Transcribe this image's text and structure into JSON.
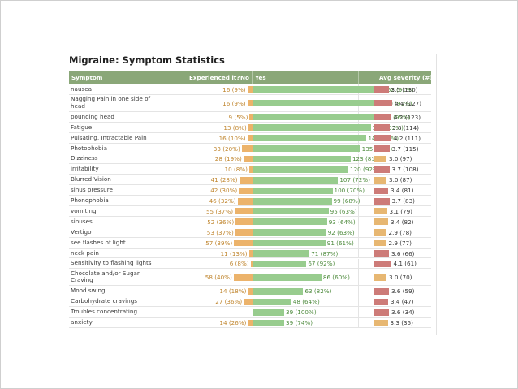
{
  "title": "Migraine: Symptom Statistics",
  "colors": {
    "header_bg": "#8aa778",
    "no_bar": "#ecb36b",
    "yes_bar": "#98cc8e",
    "severity_high": "#cd7b78",
    "severity_mid": "#e7b772"
  },
  "chart_data": {
    "type": "table",
    "title": "Migraine: Symptom Statistics",
    "columns": {
      "symptom": "Symptom",
      "experienced": "Experienced it?",
      "no": "No",
      "yes": "Yes",
      "severity": "Avg severity (#)"
    },
    "rows": [
      {
        "symptom": "nausea",
        "no_label": "16 (9%)",
        "no_count": 16,
        "yes_label": "162 (91%)",
        "yes_count": 162,
        "sev_label": "3.5 (130)",
        "severity": 3.5,
        "sev_color": "#cd7b78"
      },
      {
        "symptom": "Nagging Pain in one side of head",
        "no_label": "16 (9%)",
        "no_count": 16,
        "yes_label": "160 (91%)",
        "yes_count": 160,
        "sev_label": "4.4 (127)",
        "severity": 4.4,
        "sev_color": "#cd7b78"
      },
      {
        "symptom": "pounding head",
        "no_label": "9 (5%)",
        "no_count": 9,
        "yes_label": "158 (95%)",
        "yes_count": 158,
        "sev_label": "4.2 (123)",
        "severity": 4.2,
        "sev_color": "#cd7b78"
      },
      {
        "symptom": "Fatigue",
        "no_label": "13 (8%)",
        "no_count": 13,
        "yes_label": "149 (92%)",
        "yes_count": 149,
        "sev_label": "3.8 (114)",
        "severity": 3.8,
        "sev_color": "#cd7b78"
      },
      {
        "symptom": "Pulsating, Intractable Pain",
        "no_label": "16 (10%)",
        "no_count": 16,
        "yes_label": "143 (90%)",
        "yes_count": 143,
        "sev_label": "4.2 (111)",
        "severity": 4.2,
        "sev_color": "#cd7b78"
      },
      {
        "symptom": "Photophobia",
        "no_label": "33 (20%)",
        "no_count": 33,
        "yes_label": "135 (80%)",
        "yes_count": 135,
        "sev_label": "3.7 (115)",
        "severity": 3.7,
        "sev_color": "#cd7b78"
      },
      {
        "symptom": "Dizziness",
        "no_label": "28 (19%)",
        "no_count": 28,
        "yes_label": "123 (81%)",
        "yes_count": 123,
        "sev_label": "3.0 (97)",
        "severity": 3.0,
        "sev_color": "#e7b772"
      },
      {
        "symptom": "irritability",
        "no_label": "10 (8%)",
        "no_count": 10,
        "yes_label": "120 (92%)",
        "yes_count": 120,
        "sev_label": "3.7 (108)",
        "severity": 3.7,
        "sev_color": "#cd7b78"
      },
      {
        "symptom": "Blurred Vision",
        "no_label": "41 (28%)",
        "no_count": 41,
        "yes_label": "107 (72%)",
        "yes_count": 107,
        "sev_label": "3.0 (87)",
        "severity": 3.0,
        "sev_color": "#e7b772"
      },
      {
        "symptom": "sinus pressure",
        "no_label": "42 (30%)",
        "no_count": 42,
        "yes_label": "100 (70%)",
        "yes_count": 100,
        "sev_label": "3.4 (81)",
        "severity": 3.4,
        "sev_color": "#cd7b78"
      },
      {
        "symptom": "Phonophobia",
        "no_label": "46 (32%)",
        "no_count": 46,
        "yes_label": "99 (68%)",
        "yes_count": 99,
        "sev_label": "3.7 (83)",
        "severity": 3.7,
        "sev_color": "#cd7b78"
      },
      {
        "symptom": "vomiting",
        "no_label": "55 (37%)",
        "no_count": 55,
        "yes_label": "95 (63%)",
        "yes_count": 95,
        "sev_label": "3.1 (79)",
        "severity": 3.1,
        "sev_color": "#e7b772"
      },
      {
        "symptom": "sinuses",
        "no_label": "52 (36%)",
        "no_count": 52,
        "yes_label": "93 (64%)",
        "yes_count": 93,
        "sev_label": "3.4 (82)",
        "severity": 3.4,
        "sev_color": "#e7b772"
      },
      {
        "symptom": "Vertigo",
        "no_label": "53 (37%)",
        "no_count": 53,
        "yes_label": "92 (63%)",
        "yes_count": 92,
        "sev_label": "2.9 (78)",
        "severity": 2.9,
        "sev_color": "#e7b772"
      },
      {
        "symptom": "see flashes of light",
        "no_label": "57 (39%)",
        "no_count": 57,
        "yes_label": "91 (61%)",
        "yes_count": 91,
        "sev_label": "2.9 (77)",
        "severity": 2.9,
        "sev_color": "#e7b772"
      },
      {
        "symptom": "neck pain",
        "no_label": "11 (13%)",
        "no_count": 11,
        "yes_label": "71 (87%)",
        "yes_count": 71,
        "sev_label": "3.6 (66)",
        "severity": 3.6,
        "sev_color": "#cd7b78"
      },
      {
        "symptom": "Sensitivity to flashing lights",
        "no_label": "6 (8%)",
        "no_count": 6,
        "yes_label": "67 (92%)",
        "yes_count": 67,
        "sev_label": "4.1 (61)",
        "severity": 4.1,
        "sev_color": "#cd7b78"
      },
      {
        "symptom": "Chocolate and/or Sugar Craving",
        "no_label": "58 (40%)",
        "no_count": 58,
        "yes_label": "86 (60%)",
        "yes_count": 86,
        "sev_label": "3.0 (70)",
        "severity": 3.0,
        "sev_color": "#e7b772"
      },
      {
        "symptom": "Mood swing",
        "no_label": "14 (18%)",
        "no_count": 14,
        "yes_label": "63 (82%)",
        "yes_count": 63,
        "sev_label": "3.6 (59)",
        "severity": 3.6,
        "sev_color": "#cd7b78"
      },
      {
        "symptom": "Carbohydrate cravings",
        "no_label": "27 (36%)",
        "no_count": 27,
        "yes_label": "48 (64%)",
        "yes_count": 48,
        "sev_label": "3.4 (47)",
        "severity": 3.4,
        "sev_color": "#cd7b78"
      },
      {
        "symptom": "Troubles concentrating",
        "no_label": "",
        "no_count": 0,
        "yes_label": "39 (100%)",
        "yes_count": 39,
        "sev_label": "3.6 (34)",
        "severity": 3.6,
        "sev_color": "#cd7b78"
      },
      {
        "symptom": "anxiety",
        "no_label": "14 (26%)",
        "no_count": 14,
        "yes_label": "39 (74%)",
        "yes_count": 39,
        "sev_label": "3.3 (35)",
        "severity": 3.3,
        "sev_color": "#e7b772"
      }
    ]
  }
}
